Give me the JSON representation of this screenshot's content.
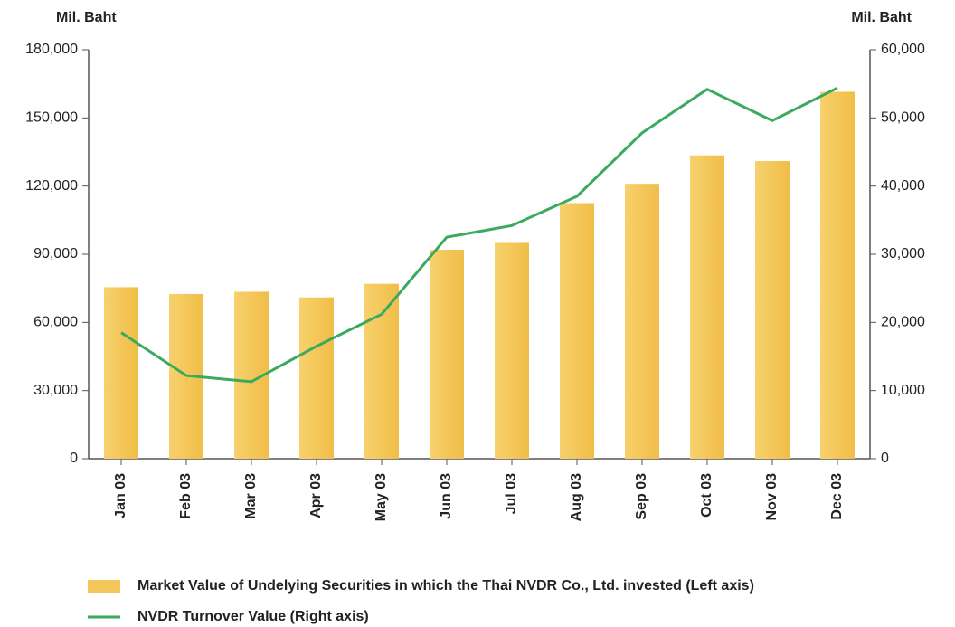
{
  "chart_data": {
    "type": "bar",
    "y_label": "Mil. Baht",
    "y2_label": "Mil. Baht",
    "categories": [
      "Jan 03",
      "Feb 03",
      "Mar 03",
      "Apr 03",
      "May 03",
      "Jun 03",
      "Jul 03",
      "Aug 03",
      "Sep 03",
      "Oct 03",
      "Nov 03",
      "Dec 03"
    ],
    "series": [
      {
        "name": "Market Value of Undelying Securities in which the Thai NVDR Co., Ltd. invested (Left axis)",
        "type": "bar",
        "color": "#f4c75a",
        "values": [
          75500,
          72500,
          73500,
          71000,
          77000,
          92000,
          95000,
          112500,
          121000,
          133500,
          131000,
          161500
        ]
      },
      {
        "name": "NVDR Turnover Value (Right axis)",
        "type": "line",
        "axis": "y2",
        "color": "#3aaa5e",
        "values": [
          18500,
          12200,
          11300,
          16500,
          21200,
          32500,
          34200,
          38500,
          47800,
          54200,
          49600,
          54400
        ]
      }
    ],
    "ylim": [
      0,
      180000
    ],
    "yticks": [
      0,
      {
        "value": 30000,
        "label": "30,000"
      },
      {
        "value": 60000,
        "label": "60,000"
      },
      {
        "value": 90000,
        "label": "90,000"
      },
      {
        "value": 120000,
        "label": "120,000"
      },
      {
        "value": 150000,
        "label": "150,000"
      },
      {
        "value": 180000,
        "label": "180,000"
      }
    ],
    "y2lim": [
      0,
      60000
    ],
    "y2ticks": [
      0,
      {
        "value": 10000,
        "label": "10,000"
      },
      {
        "value": 20000,
        "label": "20,000"
      },
      {
        "value": 30000,
        "label": "30,000"
      },
      {
        "value": 40000,
        "label": "40,000"
      },
      {
        "value": 50000,
        "label": "50,000"
      },
      {
        "value": 60000,
        "label": "60,000"
      }
    ],
    "grid": false
  }
}
